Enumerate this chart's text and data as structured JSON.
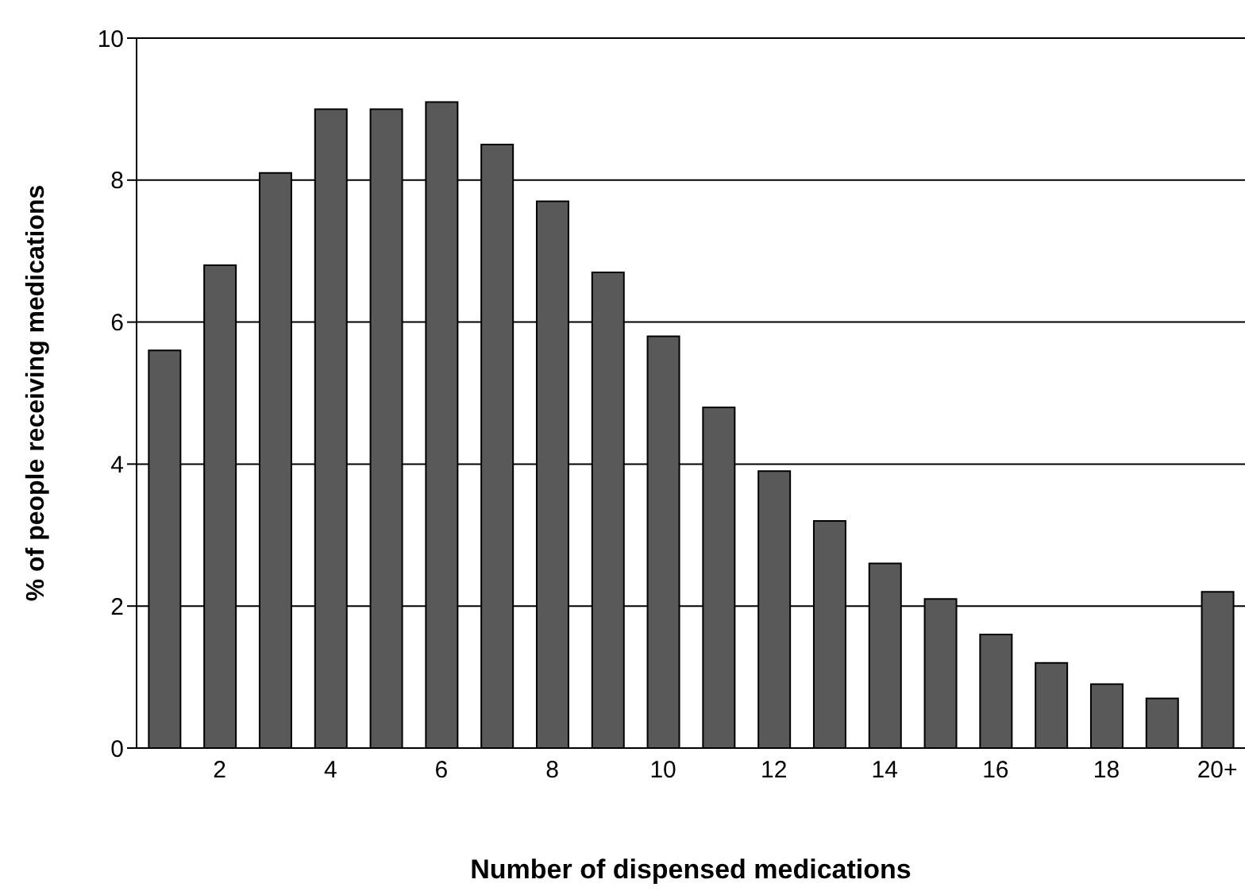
{
  "chart_data": {
    "type": "bar",
    "xlabel": "Number of dispensed medications",
    "ylabel": "% of people receiving medications",
    "categories": [
      null,
      "2",
      null,
      "4",
      null,
      "6",
      null,
      "8",
      null,
      "10",
      null,
      "12",
      null,
      "14",
      null,
      "16",
      null,
      "18",
      null,
      "20+"
    ],
    "values": [
      5.6,
      6.8,
      8.1,
      9.0,
      9.0,
      9.1,
      8.5,
      7.7,
      6.7,
      5.8,
      4.8,
      3.9,
      3.2,
      2.6,
      2.1,
      1.6,
      1.2,
      0.9,
      0.7,
      2.2
    ],
    "color": "#595959",
    "ylim": [
      0,
      10
    ],
    "yticks": [
      0,
      2,
      4,
      6,
      8,
      10
    ],
    "grid": "y",
    "legend": false
  }
}
